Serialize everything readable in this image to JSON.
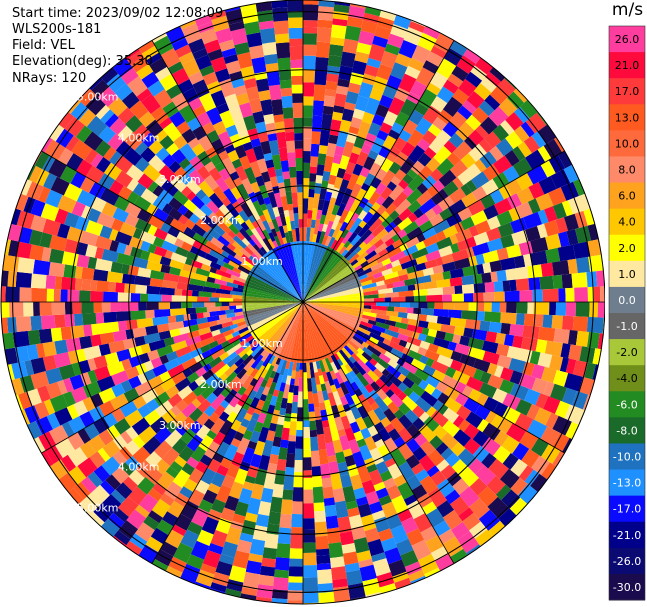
{
  "header": {
    "start_time": "Start time: 2023/09/02 12:08:09",
    "instrument": "WLS200s-181",
    "field": "Field: VEL",
    "elevation": "Elevation(deg): 35.30",
    "nrays": "NRays: 120"
  },
  "chart_data": {
    "type": "heatmap",
    "projection": "polar PPI",
    "n_rays": 120,
    "range_ring_labels": [
      "1.00km",
      "2.00km",
      "3.00km",
      "4.00km",
      "5.00km"
    ],
    "range_rings_km": [
      1,
      2,
      3,
      4,
      5
    ],
    "max_range_km": 5.2,
    "near_field_range_km": 1.05,
    "colorbar": {
      "unit": "m/s",
      "ticks": [
        "26.0",
        "21.0",
        "17.0",
        "13.0",
        "10.0",
        "8.0",
        "6.0",
        "4.0",
        "2.0",
        "1.0",
        "0.0",
        "-1.0",
        "-2.0",
        "-4.0",
        "-6.0",
        "-8.0",
        "-10.0",
        "-13.0",
        "-17.0",
        "-21.0",
        "-26.0",
        "-30.0"
      ],
      "colors": [
        "#ff3d9e",
        "#ff0a3c",
        "#ff3a3a",
        "#ff5a1f",
        "#ff6a3c",
        "#ff8a6a",
        "#ffa21e",
        "#ffc700",
        "#ffff00",
        "#ffe8a0",
        "#6e7e8e",
        "#666666",
        "#a8c83a",
        "#6f8f1a",
        "#228b22",
        "#1a6a2a",
        "#1e72c0",
        "#1e90ff",
        "#0a0aff",
        "#00008b",
        "#0a0a72",
        "#1a0a4e"
      ]
    }
  }
}
